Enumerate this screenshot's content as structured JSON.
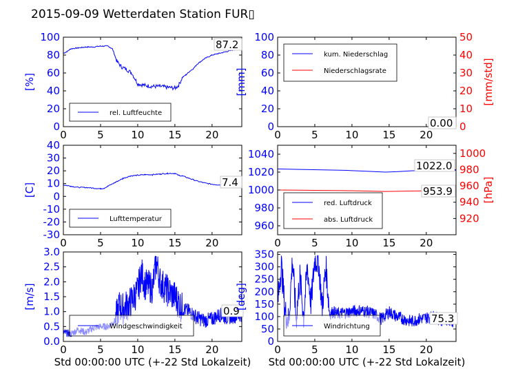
{
  "title": "2015-09-09 Wetterdaten Station FUR▯",
  "colors": {
    "left": "#0000ff",
    "right": "#ff0000",
    "text": "#000000"
  },
  "chart_data": [
    {
      "id": "p1",
      "type": "line",
      "xlim": [
        0,
        24
      ],
      "ylim": [
        0,
        100
      ],
      "yticks": [
        0,
        20,
        40,
        60,
        80,
        100
      ],
      "xticks": [
        0,
        5,
        10,
        15,
        20
      ],
      "ylabel": "[%]",
      "xlabel": "",
      "legend_loc": "lower-left",
      "annotation": "87.2",
      "series": [
        {
          "name": "rel. Luftfeuchte",
          "color": "#0000ff",
          "x": [
            0,
            0.5,
            1,
            2,
            3,
            4,
            5,
            6,
            6.6,
            7.2,
            7.8,
            8.5,
            9.2,
            10,
            11,
            12,
            13,
            14,
            15,
            15.5,
            16,
            16.5,
            17,
            17.5,
            18,
            19,
            20,
            21,
            22,
            23,
            23.8
          ],
          "y": [
            82,
            84,
            87,
            88,
            89,
            89,
            90,
            90,
            87,
            73,
            67,
            64,
            60,
            48,
            46,
            45,
            45,
            44,
            43,
            46,
            55,
            58,
            62,
            65,
            70,
            76,
            80,
            82,
            84,
            86,
            87
          ]
        }
      ]
    },
    {
      "id": "p2",
      "type": "line",
      "xlim": [
        0,
        24
      ],
      "ylim": [
        0,
        100
      ],
      "y2lim": [
        0,
        50
      ],
      "yticks": [
        0,
        20,
        40,
        60,
        80,
        100
      ],
      "y2ticks": [
        0,
        10,
        20,
        30,
        40,
        50
      ],
      "xticks": [
        0,
        5,
        10,
        15,
        20
      ],
      "ylabel": "[mm]",
      "y2label": "[mm/std]",
      "xlabel": "",
      "legend_loc": "upper-left",
      "annotation": "0.00",
      "series": [
        {
          "name": "kum. Niederschlag",
          "color": "#0000ff",
          "axis": "left",
          "x": [
            0,
            24
          ],
          "y": [
            0,
            0
          ]
        },
        {
          "name": "Niederschlagsrate",
          "color": "#ff0000",
          "axis": "right",
          "x": [
            0,
            24
          ],
          "y": [
            0,
            0
          ]
        }
      ]
    },
    {
      "id": "p3",
      "type": "line",
      "xlim": [
        0,
        24
      ],
      "ylim": [
        -30,
        40
      ],
      "yticks": [
        -30,
        -20,
        -10,
        0,
        10,
        20,
        30,
        40
      ],
      "xticks": [
        0,
        5,
        10,
        15,
        20
      ],
      "ylabel": "[C]",
      "xlabel": "",
      "legend_loc": "lower-left",
      "annotation": "7.4",
      "series": [
        {
          "name": "Lufttemperatur",
          "color": "#0000ff",
          "x": [
            0,
            1,
            2,
            3,
            4,
            5,
            5.5,
            6,
            7,
            8,
            9,
            10,
            11,
            12,
            13,
            14,
            15,
            15.5,
            16,
            17,
            18,
            19,
            20,
            21,
            22,
            23,
            24
          ],
          "y": [
            9,
            8,
            7,
            7,
            6.5,
            6,
            6.5,
            8,
            11,
            14,
            16,
            16.5,
            17,
            17,
            17.5,
            18,
            18,
            16.5,
            16,
            14,
            12,
            10.5,
            9.5,
            9,
            8.5,
            8,
            7.4
          ]
        }
      ]
    },
    {
      "id": "p4",
      "type": "line",
      "xlim": [
        0,
        24
      ],
      "ylim": [
        950,
        1050
      ],
      "y2lim": [
        900,
        1010
      ],
      "yticks": [
        960,
        980,
        1000,
        1020,
        1040
      ],
      "y2ticks": [
        920,
        940,
        960,
        980,
        1000
      ],
      "xticks": [
        0,
        5,
        10,
        15,
        20
      ],
      "ylabel": "",
      "y2label": "[hPa]",
      "xlabel": "",
      "legend_loc": "lower-left",
      "annotations": [
        "1022.0",
        "953.9"
      ],
      "series": [
        {
          "name": "red. Luftdruck",
          "color": "#0000ff",
          "axis": "left",
          "x": [
            0,
            3,
            6,
            9,
            12,
            14.5,
            16,
            18,
            20,
            22,
            24
          ],
          "y": [
            1023.5,
            1023,
            1022.5,
            1022,
            1021,
            1020,
            1020.5,
            1021.5,
            1022,
            1022,
            1022
          ]
        },
        {
          "name": "abs. Luftdruck",
          "color": "#ff0000",
          "axis": "right",
          "x": [
            0,
            3,
            6,
            9,
            12,
            14.5,
            16,
            18,
            20,
            22,
            24
          ],
          "y": [
            955,
            954.8,
            954.5,
            954.2,
            953.7,
            953.2,
            953.4,
            953.7,
            953.9,
            953.9,
            953.9
          ]
        }
      ]
    },
    {
      "id": "p5",
      "type": "line",
      "xlim": [
        0,
        24
      ],
      "ylim": [
        0,
        3.0
      ],
      "yticks": [
        0.0,
        0.5,
        1.0,
        1.5,
        2.0,
        2.5,
        3.0
      ],
      "xticks": [
        0,
        5,
        10,
        15,
        20
      ],
      "ylabel": "[m/s]",
      "xlabel": "Std 00:00:00 UTC (+-22 Std Lokalzeit)",
      "legend_loc": "lower-left",
      "annotation": "0.9",
      "series": [
        {
          "name": "Windgeschwindigkeit",
          "color": "#0000ff",
          "x": [
            0,
            1,
            2,
            3,
            4,
            5,
            6,
            7,
            7.5,
            8,
            9,
            10,
            10.5,
            11,
            12,
            12.5,
            13,
            14,
            15,
            16,
            17,
            18,
            19,
            20,
            21,
            22,
            23,
            24
          ],
          "y": [
            0.3,
            0.25,
            0.4,
            0.3,
            0.45,
            0.5,
            0.5,
            0.7,
            1.2,
            1.1,
            1.3,
            1.7,
            2.3,
            1.9,
            1.8,
            2.7,
            2.0,
            1.7,
            1.5,
            1.1,
            1.0,
            0.8,
            0.7,
            0.75,
            0.9,
            0.8,
            0.85,
            0.9
          ]
        }
      ]
    },
    {
      "id": "p6",
      "type": "line",
      "xlim": [
        0,
        24
      ],
      "ylim": [
        0,
        360
      ],
      "yticks": [
        0,
        50,
        100,
        150,
        200,
        250,
        300,
        350
      ],
      "xticks": [
        0,
        5,
        10,
        15,
        20
      ],
      "ylabel": "[deg]",
      "xlabel": "Std 00:00:00 UTC (+-22 Std Lokalzeit)",
      "legend_loc": "lower-left",
      "annotation": "75.3",
      "series": [
        {
          "name": "Windrichtung",
          "color": "#0000ff",
          "x": [
            0,
            0.5,
            1,
            1.5,
            2,
            2.5,
            3,
            3.5,
            4,
            4.5,
            5,
            5.5,
            6,
            6.5,
            7,
            7.5,
            8,
            9,
            10,
            11,
            12,
            13,
            14,
            15,
            16,
            17,
            18,
            19,
            20,
            21,
            22,
            23,
            24
          ],
          "y": [
            150,
            310,
            120,
            80,
            330,
            90,
            260,
            100,
            300,
            150,
            330,
            320,
            140,
            300,
            110,
            120,
            110,
            115,
            120,
            125,
            120,
            110,
            90,
            120,
            100,
            90,
            80,
            90,
            95,
            100,
            85,
            90,
            75
          ]
        }
      ]
    }
  ]
}
